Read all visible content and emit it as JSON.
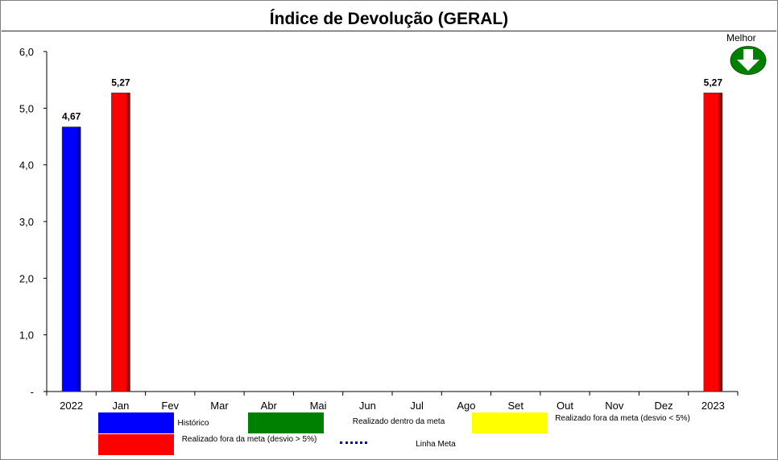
{
  "title": "Índice de Devolução (GERAL)",
  "indicator": {
    "label": "Melhor",
    "icon": "arrow-down-icon",
    "color": "#008000"
  },
  "chart_data": {
    "type": "bar",
    "title": "Índice de Devolução (GERAL)",
    "categories": [
      "2022",
      "Jan",
      "Fev",
      "Mar",
      "Abr",
      "Mai",
      "Jun",
      "Jul",
      "Ago",
      "Set",
      "Out",
      "Nov",
      "Dez",
      "2023"
    ],
    "values": [
      4.67,
      5.27,
      null,
      null,
      null,
      null,
      null,
      null,
      null,
      null,
      null,
      null,
      null,
      5.27
    ],
    "data_labels": [
      "4,67",
      "5,27",
      "",
      "",
      "",
      "",
      "",
      "",
      "",
      "",
      "",
      "",
      "",
      "5,27"
    ],
    "bar_colors": [
      "#0000ff",
      "#ff0000",
      null,
      null,
      null,
      null,
      null,
      null,
      null,
      null,
      null,
      null,
      null,
      "#ff0000"
    ],
    "ylim": [
      0,
      6
    ],
    "yticks": [
      0,
      1,
      2,
      3,
      4,
      5,
      6
    ],
    "ytick_labels": [
      "-",
      "1,0",
      "2,0",
      "3,0",
      "4,0",
      "5,0",
      "6,0"
    ],
    "grid": false,
    "legend_position": "bottom",
    "legend": [
      {
        "label": "Histórico",
        "color": "#0000ff",
        "kind": "box"
      },
      {
        "label": "Realizado dentro da meta",
        "color": "#008000",
        "kind": "box"
      },
      {
        "label": "Realizado fora da meta (desvio < 5%)",
        "color": "#ffff00",
        "kind": "box"
      },
      {
        "label": "Realizado fora da meta (desvio > 5%)",
        "color": "#ff0000",
        "kind": "box"
      },
      {
        "label": "Linha Meta",
        "color": "#0000cc",
        "kind": "dotted"
      }
    ]
  }
}
